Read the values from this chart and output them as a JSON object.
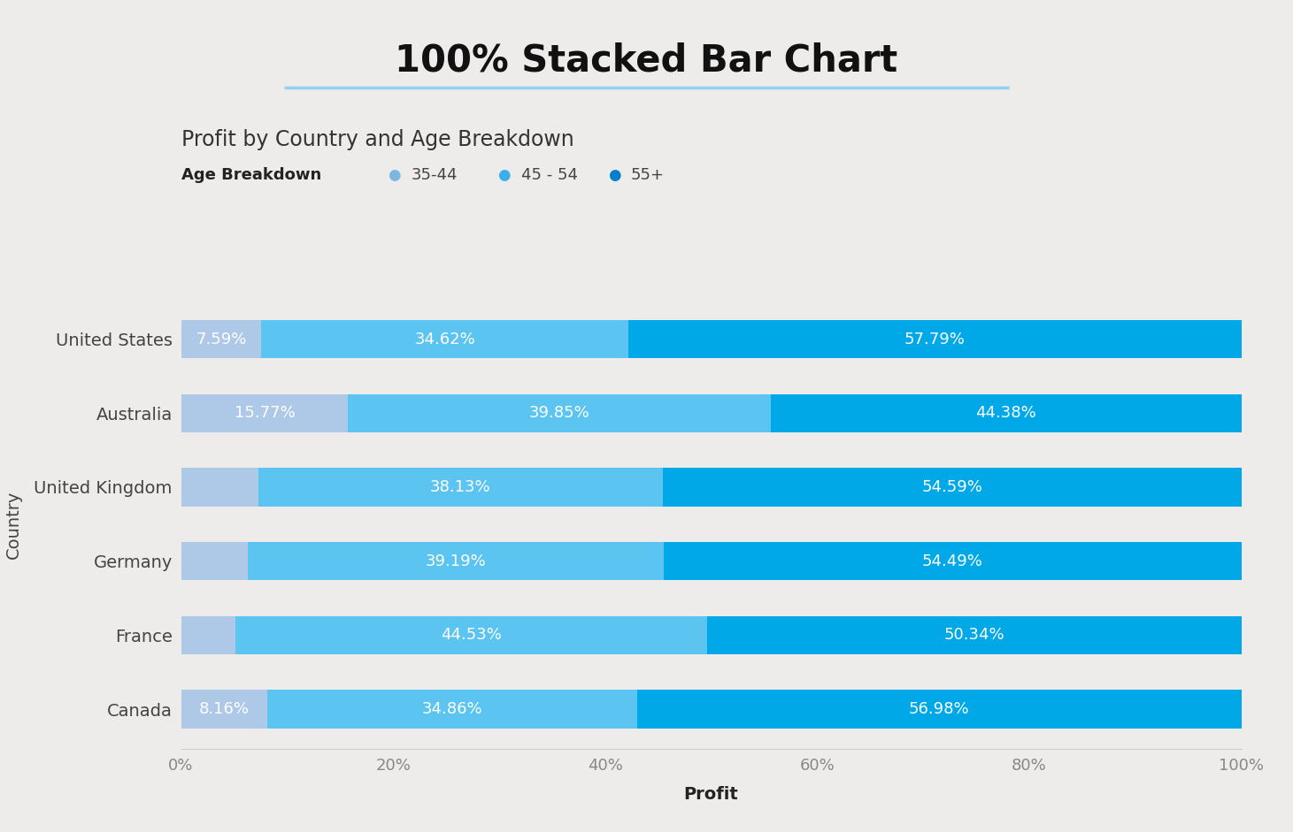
{
  "title": "100% Stacked Bar Chart",
  "subtitle": "Profit by Country and Age Breakdown",
  "legend_title": "Age Breakdown",
  "legend_labels": [
    "35-44",
    "45 - 54",
    "55+"
  ],
  "xlabel": "Profit",
  "ylabel": "Country",
  "background_color": "#eeecea",
  "plot_bg_color": "#eeecea",
  "bar_colors": [
    "#aec8e8",
    "#5bc4f0",
    "#00a8e8"
  ],
  "legend_colors": [
    "#7ab8e0",
    "#3ab0e8",
    "#0080cc"
  ],
  "categories": [
    "Canada",
    "France",
    "Germany",
    "United Kingdom",
    "Australia",
    "United States"
  ],
  "data": {
    "35-44": [
      8.16,
      5.13,
      6.32,
      7.28,
      15.77,
      7.59
    ],
    "45 - 54": [
      34.86,
      44.53,
      39.19,
      38.13,
      39.85,
      34.62
    ],
    "55+": [
      56.98,
      50.34,
      54.49,
      54.59,
      44.38,
      57.79
    ]
  },
  "bar_labels": {
    "35-44": [
      "8.16%",
      "",
      "",
      "",
      "15.77%",
      "7.59%"
    ],
    "45 - 54": [
      "34.86%",
      "44.53%",
      "39.19%",
      "38.13%",
      "39.85%",
      "34.62%"
    ],
    "55+": [
      "56.98%",
      "50.34%",
      "54.49%",
      "54.59%",
      "44.38%",
      "57.79%"
    ]
  },
  "hide_small_labels": [
    true,
    false,
    false,
    false,
    false,
    false
  ],
  "title_fontsize": 30,
  "subtitle_fontsize": 17,
  "tick_fontsize": 13,
  "bar_label_fontsize": 13,
  "legend_fontsize": 13,
  "ylabel_fontsize": 14,
  "xlabel_fontsize": 14,
  "title_underline_color": "#90d0f0",
  "bar_height": 0.52,
  "min_label_pct": 5.5
}
